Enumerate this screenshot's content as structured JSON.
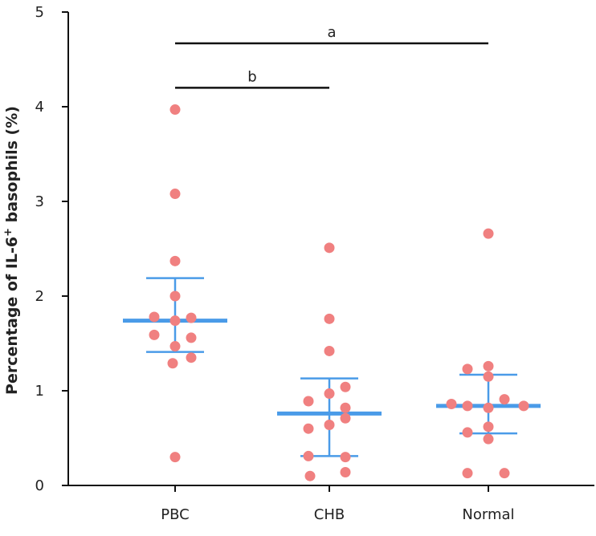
{
  "chart_data": {
    "type": "scatter",
    "title": "",
    "xlabel": "",
    "ylabel_prefix": "Percentage of IL-6",
    "ylabel_sup": "+",
    "ylabel_suffix": " basophils (%)",
    "ylim": [
      0,
      5
    ],
    "yticks": [
      "0",
      "1",
      "2",
      "3",
      "4",
      "5"
    ],
    "categories": [
      "PBC",
      "CHB",
      "Normal"
    ],
    "groups": [
      {
        "name": "PBC",
        "mean": 1.74,
        "error_upper": 2.19,
        "error_lower": 1.41,
        "points": [
          3.97,
          3.08,
          2.37,
          2.0,
          1.78,
          1.77,
          1.74,
          1.59,
          1.56,
          1.47,
          1.35,
          1.29,
          0.3
        ]
      },
      {
        "name": "CHB",
        "mean": 0.76,
        "error_upper": 1.13,
        "error_lower": 0.31,
        "points": [
          2.51,
          1.76,
          1.42,
          1.04,
          0.97,
          0.89,
          0.82,
          0.71,
          0.64,
          0.6,
          0.31,
          0.3,
          0.14,
          0.1
        ]
      },
      {
        "name": "Normal",
        "mean": 0.84,
        "error_upper": 1.17,
        "error_lower": 0.55,
        "points": [
          2.66,
          1.26,
          1.23,
          1.15,
          0.91,
          0.86,
          0.84,
          0.84,
          0.82,
          0.62,
          0.56,
          0.49,
          0.13,
          0.13
        ]
      }
    ],
    "significance": [
      {
        "label": "a",
        "from": "PBC",
        "to": "Normal",
        "y": 4.67
      },
      {
        "label": "b",
        "from": "PBC",
        "to": "CHB",
        "y": 4.2
      }
    ],
    "colors": {
      "points": "#f08080",
      "bars": "#4a9be8",
      "axis": "#111111"
    }
  }
}
